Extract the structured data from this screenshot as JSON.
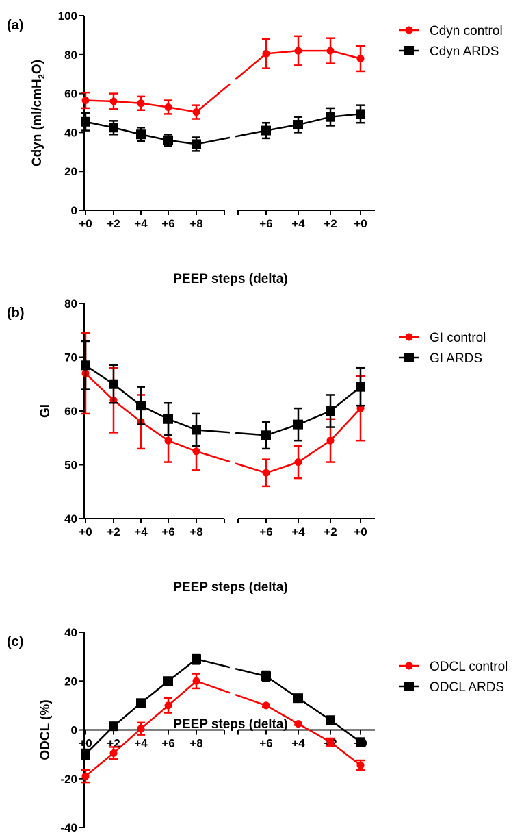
{
  "colors": {
    "control": "#ff0000",
    "ards": "#000000"
  },
  "chart_data": [
    {
      "type": "line",
      "panel_label": "(a)",
      "ylabel_main": "Cdyn (ml/cmH",
      "ylabel_sub": "2",
      "ylabel_end": "O)",
      "xlabel": "PEEP steps (delta)",
      "categories": [
        "+0",
        "+2",
        "+4",
        "+6",
        "+8",
        "+6",
        "+4",
        "+2",
        "+0"
      ],
      "ylim": [
        0,
        100
      ],
      "yticks": [
        "0",
        "20",
        "40",
        "60",
        "80",
        "100"
      ],
      "grid": false,
      "legend_position": "top-right",
      "series": [
        {
          "name": "Cdyn control",
          "marker": "circle",
          "values": [
            56.5,
            56,
            55,
            53,
            50.5,
            80.5,
            82,
            82,
            78
          ],
          "errors": [
            4,
            4,
            3.5,
            3.5,
            3.5,
            7.5,
            7.5,
            6.5,
            6.5
          ]
        },
        {
          "name": "Cdyn ARDS",
          "marker": "square",
          "values": [
            45.5,
            42.5,
            39,
            36,
            34,
            41,
            44,
            48,
            49.5
          ],
          "errors": [
            4.5,
            3.5,
            3.5,
            3,
            3.5,
            4,
            4,
            4.5,
            4.5
          ]
        }
      ]
    },
    {
      "type": "line",
      "panel_label": "(b)",
      "ylabel_main": "GI",
      "xlabel": "PEEP steps (delta)",
      "categories": [
        "+0",
        "+2",
        "+4",
        "+6",
        "+8",
        "+6",
        "+4",
        "+2",
        "+0"
      ],
      "ylim": [
        40,
        80
      ],
      "yticks": [
        "40",
        "50",
        "60",
        "70",
        "80"
      ],
      "grid": false,
      "legend_position": "top-right",
      "series": [
        {
          "name": "GI control",
          "marker": "circle",
          "values": [
            67,
            62,
            58,
            54.5,
            52.5,
            48.5,
            50.5,
            54.5,
            60.5
          ],
          "errors": [
            7.5,
            6,
            5,
            4,
            3.5,
            2.5,
            3,
            4,
            6
          ]
        },
        {
          "name": "GI ARDS",
          "marker": "square",
          "values": [
            68.5,
            65,
            61,
            58.5,
            56.5,
            55.5,
            57.5,
            60,
            64.5
          ],
          "errors": [
            4.5,
            3.5,
            3.5,
            3,
            3,
            2.5,
            3,
            3,
            3.5
          ]
        }
      ]
    },
    {
      "type": "line",
      "panel_label": "(c)",
      "ylabel_main": "ODCL (%)",
      "xlabel": "PEEP steps (delta)",
      "categories": [
        "+0",
        "+2",
        "+4",
        "+6",
        "+8",
        "+6",
        "+4",
        "+2",
        "+0"
      ],
      "ylim": [
        -40,
        40
      ],
      "yticks": [
        "-40",
        "-20",
        "0",
        "20",
        "40"
      ],
      "grid": false,
      "legend_position": "top-right",
      "series": [
        {
          "name": "ODCL control",
          "marker": "circle",
          "values": [
            -19,
            -9.5,
            0.5,
            10,
            20,
            10,
            2.5,
            -5,
            -14.5
          ],
          "errors": [
            2.5,
            2.5,
            2.5,
            3,
            3,
            0.5,
            0.5,
            1.5,
            2
          ]
        },
        {
          "name": "ODCL ARDS",
          "marker": "square",
          "values": [
            -10,
            1.5,
            11,
            20,
            29,
            22,
            13,
            4,
            -5
          ],
          "errors": [
            2,
            1.5,
            1.5,
            1.5,
            2,
            2,
            0.5,
            0.5,
            0.5
          ]
        }
      ]
    }
  ]
}
